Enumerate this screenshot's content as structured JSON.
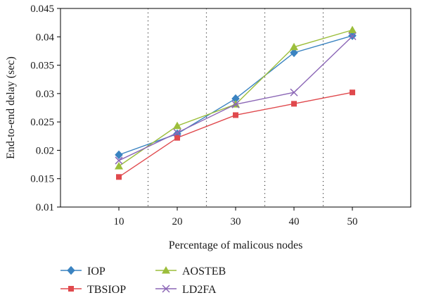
{
  "chart_data": {
    "type": "line",
    "title": "",
    "xlabel": "Percentage of malicous nodes",
    "ylabel": "End-to-end delay (sec)",
    "x": [
      10,
      20,
      30,
      40,
      50
    ],
    "x_tick_labels": [
      "10",
      "20",
      "30",
      "40",
      "50"
    ],
    "xlim": [
      0,
      60
    ],
    "ylim": [
      0.01,
      0.045
    ],
    "y_ticks": [
      0.01,
      0.015,
      0.02,
      0.025,
      0.03,
      0.035,
      0.04,
      0.045
    ],
    "y_tick_labels": [
      "0.01",
      "0.015",
      "0.02",
      "0.025",
      "0.03",
      "0.035",
      "0.04",
      "0.045"
    ],
    "vertical_dotted_lines_at": [
      15,
      25,
      35,
      45
    ],
    "grid": false,
    "legend_position": "bottom-left, below the plot",
    "series": [
      {
        "name": "IOP",
        "marker": "diamond",
        "color": "#3a83c1",
        "values": [
          0.0192,
          0.0229,
          0.0291,
          0.0372,
          0.0402
        ]
      },
      {
        "name": "TBSIOP",
        "marker": "square",
        "color": "#e0494d",
        "values": [
          0.0153,
          0.0222,
          0.0262,
          0.0282,
          0.0302
        ]
      },
      {
        "name": "AOSTEB",
        "marker": "triangle",
        "color": "#9cbe3b",
        "values": [
          0.0172,
          0.0243,
          0.0281,
          0.0382,
          0.0412
        ]
      },
      {
        "name": "LD2FA",
        "marker": "x",
        "color": "#8b66b6",
        "values": [
          0.0182,
          0.0231,
          0.0281,
          0.0302,
          0.0401
        ]
      }
    ]
  }
}
